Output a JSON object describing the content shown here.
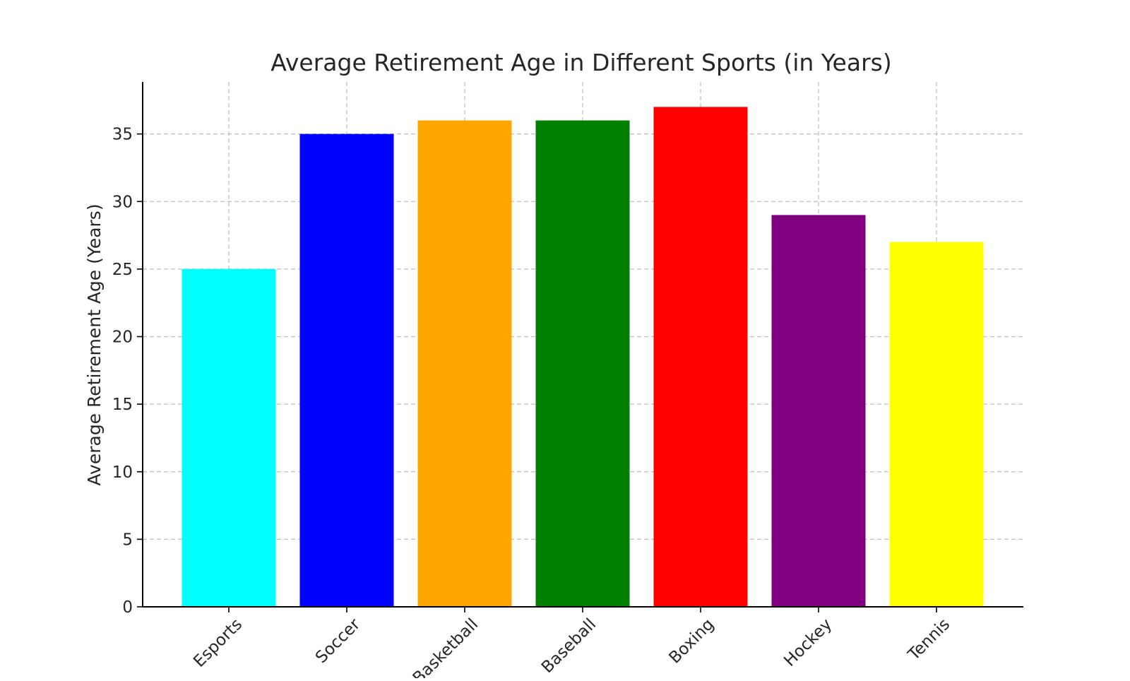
{
  "chart_data": {
    "type": "bar",
    "title": "Average Retirement Age in Different Sports (in Years)",
    "xlabel": "",
    "ylabel": "Average Retirement Age (Years)",
    "categories": [
      "Esports",
      "Soccer",
      "Basketball",
      "Baseball",
      "Boxing",
      "Hockey",
      "Tennis"
    ],
    "values": [
      25,
      35,
      36,
      36,
      37,
      29,
      27
    ],
    "colors": [
      "#00ffff",
      "#0000ff",
      "#ffa500",
      "#008000",
      "#ff0000",
      "#800080",
      "#ffff00"
    ],
    "ylim": [
      0,
      38.85
    ],
    "yticks": [
      0,
      5,
      10,
      15,
      20,
      25,
      30,
      35
    ],
    "grid": true,
    "legend": "none"
  }
}
